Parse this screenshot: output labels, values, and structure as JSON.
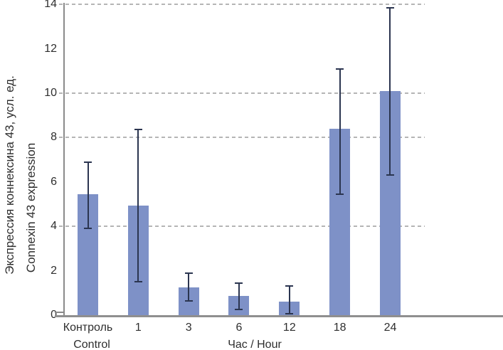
{
  "chart_data": {
    "type": "bar",
    "title": "",
    "categories": [
      "Контроль",
      "1",
      "3",
      "6",
      "12",
      "18",
      "24"
    ],
    "values": [
      5.45,
      4.95,
      1.25,
      0.85,
      0.6,
      8.4,
      10.1
    ],
    "error_low": [
      3.9,
      1.5,
      0.65,
      0.25,
      0.05,
      5.45,
      6.3
    ],
    "error_high": [
      6.9,
      8.35,
      1.9,
      1.45,
      1.3,
      11.1,
      13.85
    ],
    "ylabel_line1": "Экспрессия коннексина 43, усл. ед.",
    "ylabel_line2": "Connexin 43 expression",
    "xlabel": "Час / Hour",
    "first_category_sublabel": "Control",
    "yticks": [
      0,
      2,
      4,
      6,
      8,
      10,
      12,
      14
    ],
    "gridline_values": [
      4,
      8,
      10,
      14
    ],
    "ylim": [
      0,
      14
    ],
    "grid": "horizontal dashed",
    "legend_position": "none",
    "colors": {
      "bar": "#7e91c7",
      "error_bar": "#2b3550",
      "axis": "#8f8f8f",
      "gridline": "#b5b5b5",
      "text": "#2e2e2e"
    }
  }
}
